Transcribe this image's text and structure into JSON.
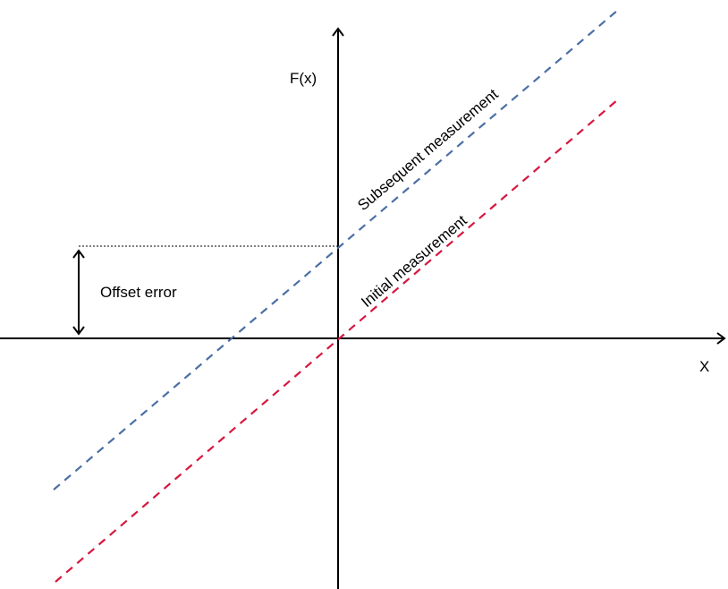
{
  "labels": {
    "y_axis": "F(x)",
    "x_axis": "X",
    "offset": "Offset error",
    "subsequent": "Subsequent measurement",
    "initial": "Initial measurement"
  },
  "colors": {
    "axis": "#000000",
    "subsequent_line": "#4a6fa5",
    "initial_line": "#d6173f",
    "guide_line": "#000000"
  },
  "line_style": "dashed"
}
